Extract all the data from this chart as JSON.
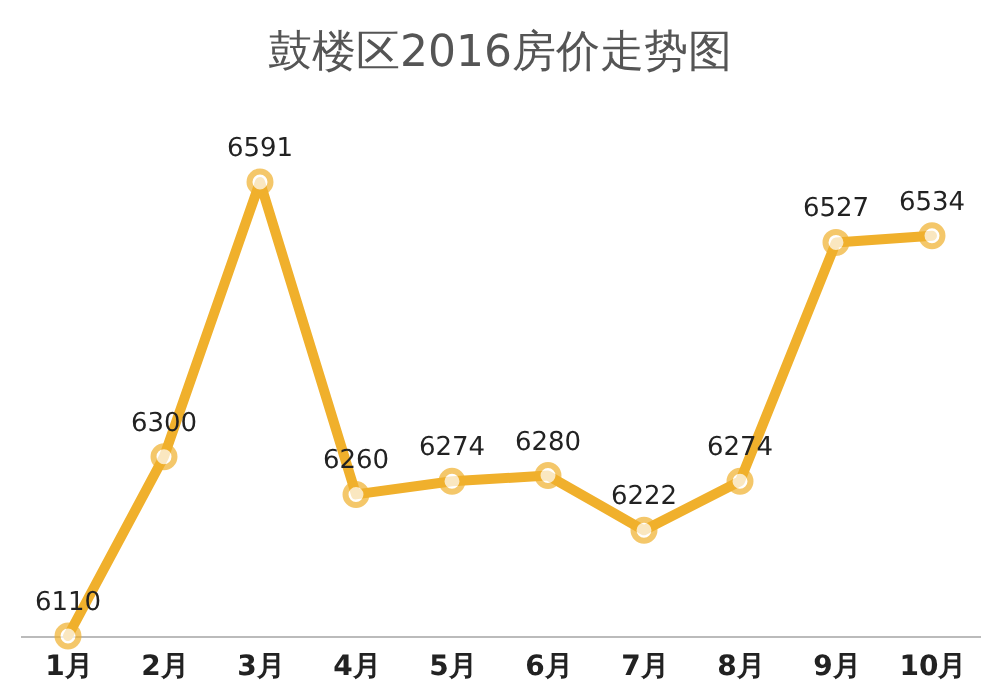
{
  "chart_data": {
    "type": "line",
    "title": "鼓楼区2016房价走势图",
    "categories": [
      "1月",
      "2月",
      "3月",
      "4月",
      "5月",
      "6月",
      "7月",
      "8月",
      "9月",
      "10月"
    ],
    "series": [
      {
        "color": "#f0b02c",
        "values": [
          6110,
          6300,
          6591,
          6260,
          6274,
          6280,
          6222,
          6274,
          6527,
          6534
        ]
      }
    ],
    "data_labels": true,
    "marker": "circle",
    "tick_labels": "x",
    "grid": false,
    "legend": false
  }
}
